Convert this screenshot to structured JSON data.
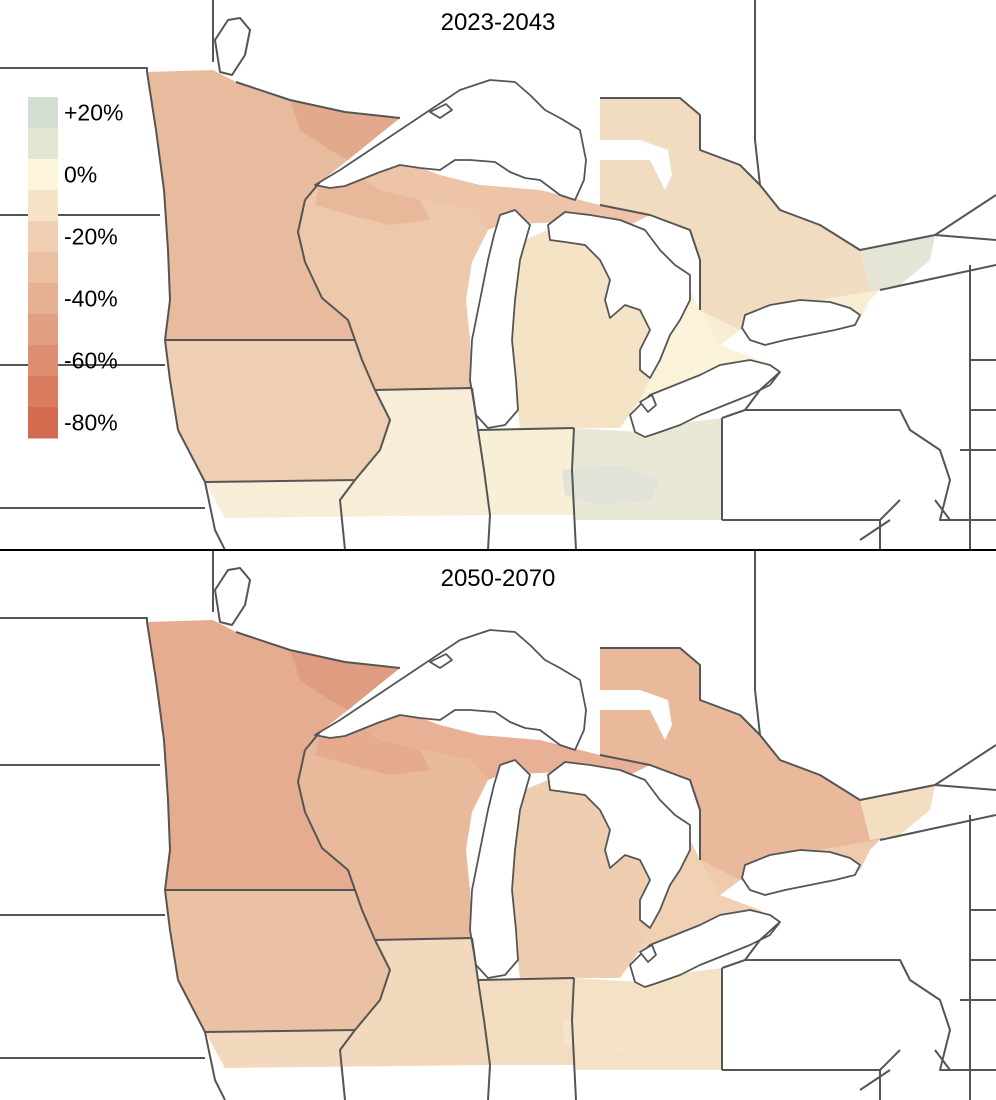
{
  "panels": [
    {
      "title": "2023-2043",
      "shading": {
        "mn": "#e9bb9e",
        "arrowhead": "#e3a98c",
        "wi": "#edc8ab",
        "wi_north": "#e9b89b",
        "ia": "#eecfb3",
        "il_mo": "#f8edd6",
        "in": "#f7efd6",
        "oh": "#e9e7d6",
        "oh_hot": "#e1e3d8",
        "mi_upper": "#edc4a7",
        "mi_lower": "#f5e3c6",
        "ontario_north": "#f2dcc1",
        "ontario_south": "#f8eed3",
        "ontario_se": "#fbf3d9",
        "quebec_tip": "#e5e5d6"
      }
    },
    {
      "title": "2050-2070",
      "shading": {
        "mn": "#e6ac8f",
        "arrowhead": "#e09c80",
        "wi": "#e9b99c",
        "wi_north": "#e6aa8e",
        "ia": "#ebc1a4",
        "il_mo": "#f2d9bd",
        "in": "#f3ddc0",
        "oh": "#f4e2c6",
        "oh_hot": "#f5e4c8",
        "mi_upper": "#e8b195",
        "mi_lower": "#efcdb0",
        "ontario_north": "#eab99c",
        "ontario_south": "#efcbae",
        "ontario_se": "#f0d1b4",
        "quebec_tip": "#f4dec1"
      }
    }
  ],
  "legend": {
    "entries": [
      {
        "label": "+20%",
        "color": "#d3ded3"
      },
      {
        "label": "",
        "color": "#e4e6d4"
      },
      {
        "label": "0%",
        "color": "#fdf6dc"
      },
      {
        "label": "",
        "color": "#f6e3c8"
      },
      {
        "label": "-20%",
        "color": "#f0cfb2"
      },
      {
        "label": "",
        "color": "#ebbfa2"
      },
      {
        "label": "-40%",
        "color": "#e6b092"
      },
      {
        "label": "",
        "color": "#e29f82"
      },
      {
        "label": "-60%",
        "color": "#dd8d70"
      },
      {
        "label": "",
        "color": "#d97c5f"
      },
      {
        "label": "-80%",
        "color": "#d46a4e"
      }
    ]
  }
}
